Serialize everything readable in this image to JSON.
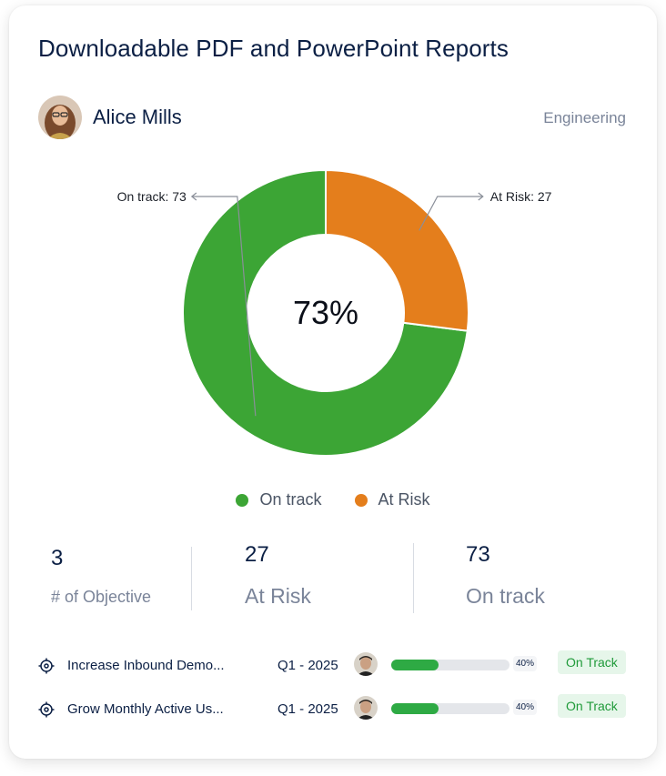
{
  "card": {
    "title": "Downloadable PDF and PowerPoint Reports",
    "user": {
      "name": "Alice Mills",
      "department": "Engineering"
    }
  },
  "chart_data": {
    "type": "pie",
    "donut": true,
    "center_label": "73%",
    "slices": [
      {
        "name": "On track",
        "value": 73,
        "color": "#3ca535",
        "callout": "On track: 73"
      },
      {
        "name": "At Risk",
        "value": 27,
        "color": "#e47e1c",
        "callout": "At Risk: 27"
      }
    ],
    "legend": [
      "On track",
      "At Risk"
    ],
    "legend_position": "bottom"
  },
  "stats": [
    {
      "value": "3",
      "label": "# of Objective"
    },
    {
      "value": "27",
      "label": "At Risk"
    },
    {
      "value": "73",
      "label": "On track"
    }
  ],
  "objectives": [
    {
      "name": "Increase Inbound Demo...",
      "quarter": "Q1 - 2025",
      "progress": 0.4,
      "progress_label": "40%",
      "status": "On Track"
    },
    {
      "name": "Grow Monthly Active Us...",
      "quarter": "Q1 - 2025",
      "progress": 0.4,
      "progress_label": "40%",
      "status": "On Track"
    }
  ],
  "colors": {
    "on_track": "#3ca535",
    "at_risk": "#e47e1c",
    "badge_bg": "#e6f6ea",
    "badge_text": "#1f9a39",
    "progress": "#2eaa44"
  },
  "icons": {
    "objective": "target-icon"
  }
}
